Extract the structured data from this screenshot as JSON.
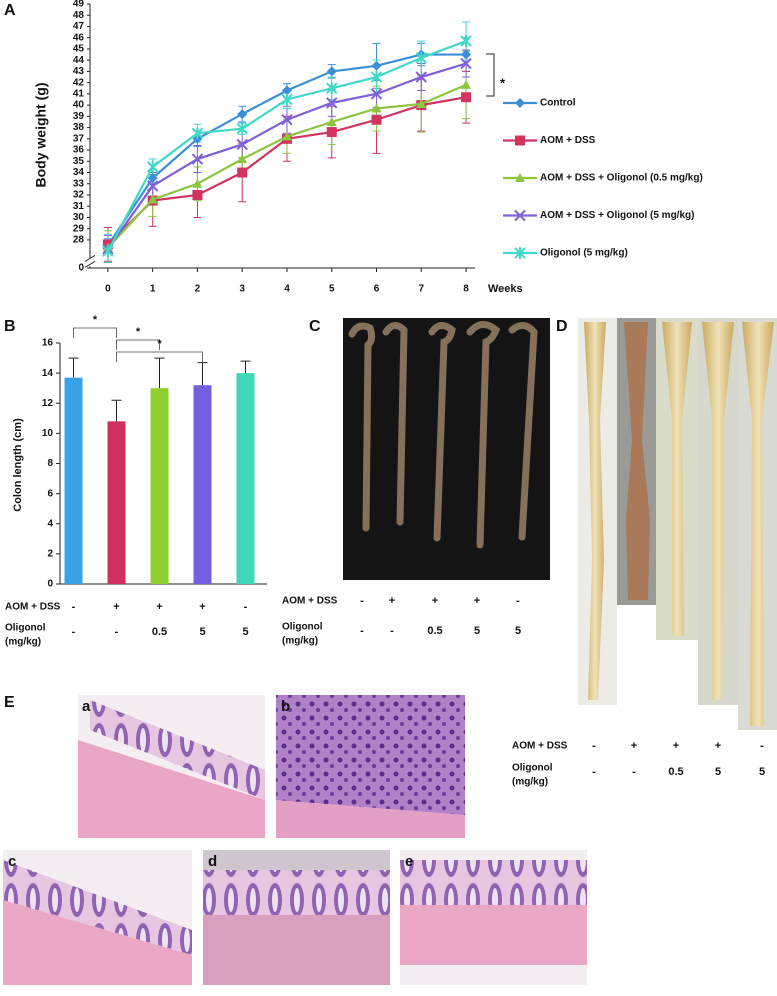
{
  "chart_data": [
    {
      "type": "line",
      "panel_label": "A",
      "ylabel": "Body weight (g)",
      "xlabel": "Weeks",
      "x": [
        0,
        1,
        2,
        3,
        4,
        5,
        6,
        7,
        8
      ],
      "xlim": [
        -0.4,
        8.2
      ],
      "xticks": [
        0,
        1,
        2,
        3,
        4,
        5,
        6,
        7,
        8
      ],
      "ylim": [
        0,
        49
      ],
      "y_break": [
        0.5,
        26
      ],
      "yticks": [
        0,
        28,
        29,
        30,
        31,
        32,
        33,
        34,
        35,
        36,
        37,
        38,
        39,
        40,
        41,
        42,
        43,
        44,
        45,
        46,
        47,
        48,
        49
      ],
      "legend": "right",
      "annotation": "*",
      "series": [
        {
          "name": "Control",
          "color": "#3a8fd8",
          "marker": "diamond",
          "values": [
            27.5,
            33.5,
            37.0,
            39.2,
            41.3,
            43.0,
            43.5,
            44.5,
            44.5
          ],
          "errors": [
            0.6,
            0.5,
            0.7,
            0.7,
            0.6,
            0.6,
            2.0,
            1.0,
            1.5
          ]
        },
        {
          "name": "AOM + DSS",
          "color": "#d0345f",
          "marker": "square",
          "values": [
            27.6,
            31.5,
            32.0,
            34.0,
            37.0,
            37.6,
            38.7,
            40.0,
            40.7
          ],
          "errors": [
            1.5,
            2.3,
            2.0,
            2.6,
            2.0,
            2.3,
            3.0,
            2.3,
            2.3
          ]
        },
        {
          "name": "AOM + DSS + Oligonol (0.5 mg/kg)",
          "color": "#8cc63f",
          "marker": "triangle",
          "values": [
            27.3,
            31.6,
            33.0,
            35.2,
            37.2,
            38.5,
            39.7,
            40.1,
            41.8
          ],
          "errors": [
            1.5,
            1.5,
            1.5,
            1.5,
            1.5,
            2.0,
            2.0,
            2.5,
            3.0
          ]
        },
        {
          "name": "AOM + DSS + Oligonol (5 mg/kg)",
          "color": "#8060d8",
          "marker": "x",
          "values": [
            27.2,
            32.8,
            35.2,
            36.5,
            38.7,
            40.2,
            41.0,
            42.5,
            43.7
          ],
          "errors": [
            1.2,
            1.2,
            1.2,
            1.2,
            1.2,
            1.2,
            1.2,
            1.2,
            1.2
          ]
        },
        {
          "name": "Oligonol (5 mg/kg)",
          "color": "#40d8c8",
          "marker": "star",
          "values": [
            27.0,
            34.5,
            37.5,
            37.9,
            40.5,
            41.5,
            42.5,
            44.2,
            45.7
          ],
          "errors": [
            1.5,
            0.7,
            0.8,
            0.5,
            0.8,
            1.0,
            1.5,
            1.5,
            1.7
          ]
        }
      ]
    },
    {
      "type": "bar",
      "panel_label": "B",
      "ylabel": "Colon length (cm)",
      "values": [
        13.7,
        10.8,
        13.0,
        13.2,
        14.0
      ],
      "errors": [
        1.3,
        1.4,
        2.0,
        1.5,
        0.8
      ],
      "colors": [
        "#3aa0e8",
        "#d03060",
        "#90d030",
        "#7060e0",
        "#40d8b8"
      ],
      "ylim": [
        0,
        16
      ],
      "yticks": [
        0,
        2,
        4,
        6,
        8,
        10,
        12,
        14,
        16
      ],
      "significance": [
        {
          "label": "*",
          "from": 0,
          "to": 1
        },
        {
          "label": "*",
          "from": 1,
          "to": 2
        },
        {
          "label": "*",
          "from": 1,
          "to": 3
        }
      ],
      "treatments": [
        {
          "label": [
            "AOM + DSS"
          ],
          "cells": [
            "-",
            "+",
            "+",
            "+",
            "-"
          ]
        },
        {
          "label": [
            "Oligonol",
            "(mg/kg)"
          ],
          "cells": [
            "-",
            "-",
            "0.5",
            "5",
            "5"
          ]
        }
      ]
    }
  ],
  "panel_c": {
    "label": "C",
    "treatments": [
      {
        "label": [
          "AOM + DSS"
        ],
        "cells": [
          "-",
          "+",
          "+",
          "+",
          "-"
        ]
      },
      {
        "label": [
          "Oligonol",
          "(mg/kg)"
        ],
        "cells": [
          "-",
          "-",
          "0.5",
          "5",
          "5"
        ]
      }
    ]
  },
  "panel_d": {
    "label": "D",
    "treatments": [
      {
        "label": [
          "AOM + DSS"
        ],
        "cells": [
          "-",
          "+",
          "+",
          "+",
          "-"
        ]
      },
      {
        "label": [
          "Oligonol",
          "(mg/kg)"
        ],
        "cells": [
          "-",
          "-",
          "0.5",
          "5",
          "5"
        ]
      }
    ]
  },
  "panel_e": {
    "label": "E",
    "images": [
      "a",
      "b",
      "c",
      "d",
      "e"
    ]
  }
}
